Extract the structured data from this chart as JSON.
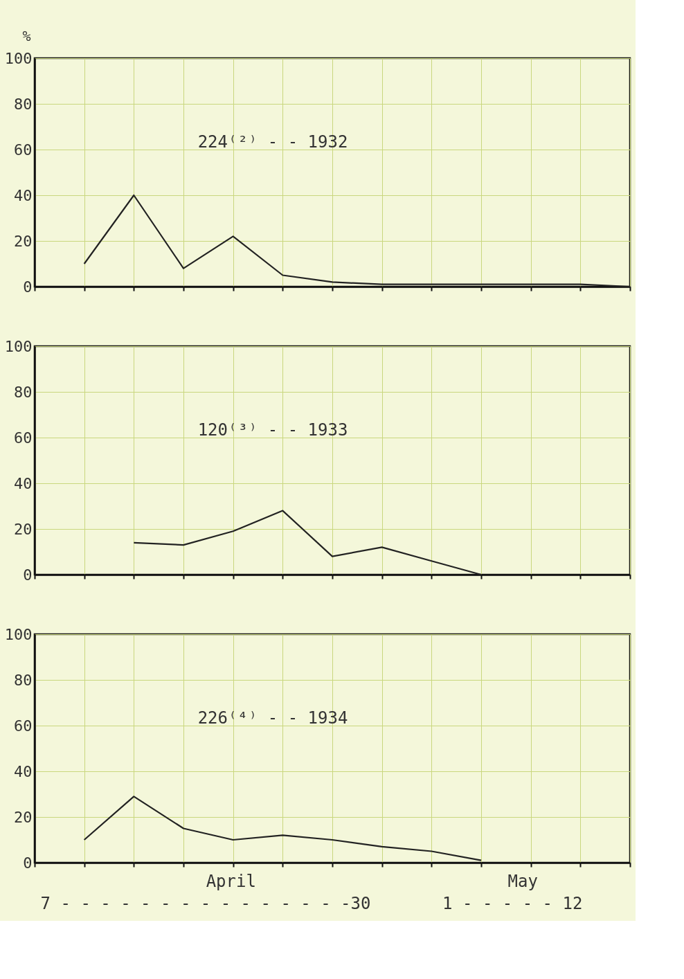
{
  "chart_data": [
    {
      "type": "line",
      "title": "224⁽²⁾ - - 1932",
      "ylabel": "%",
      "categories": [
        null,
        null,
        null,
        null,
        null,
        null,
        null,
        null,
        null,
        null,
        null,
        null,
        null
      ],
      "series": [
        {
          "color": "#222222",
          "values": [
            null,
            10,
            40,
            8,
            22,
            5,
            2,
            1,
            1,
            1,
            1,
            1,
            0
          ]
        }
      ],
      "ylim": [
        0,
        100
      ],
      "yticks": [
        0,
        20,
        40,
        60,
        80,
        100
      ],
      "grid": true,
      "line_style": "solid"
    },
    {
      "type": "line",
      "title": "120⁽³⁾ - - 1933",
      "categories": [
        null,
        null,
        null,
        null,
        null,
        null,
        null,
        null,
        null,
        null,
        null,
        null,
        null
      ],
      "series": [
        {
          "color": "#222222",
          "values": [
            null,
            null,
            14,
            13,
            19,
            28,
            8,
            12,
            6,
            0,
            null,
            null,
            null
          ]
        }
      ],
      "ylim": [
        0,
        100
      ],
      "yticks": [
        0,
        20,
        40,
        60,
        80,
        100
      ],
      "grid": true,
      "line_style": "solid"
    },
    {
      "type": "line",
      "title": "226⁽⁴⁾ - - 1934",
      "categories": [
        null,
        null,
        null,
        null,
        null,
        null,
        null,
        null,
        null,
        null,
        null,
        null,
        null
      ],
      "series": [
        {
          "color": "#222222",
          "values": [
            null,
            10,
            29,
            15,
            10,
            12,
            10,
            7,
            5,
            1,
            null,
            null,
            null
          ]
        }
      ],
      "ylim": [
        0,
        100
      ],
      "yticks": [
        0,
        20,
        40,
        60,
        80,
        100
      ],
      "grid": true,
      "line_style": "solid",
      "annotations": [
        "April",
        "May",
        "7 - - - - - - - - - - - - - - -30",
        "1 - - - - - 12"
      ]
    }
  ]
}
